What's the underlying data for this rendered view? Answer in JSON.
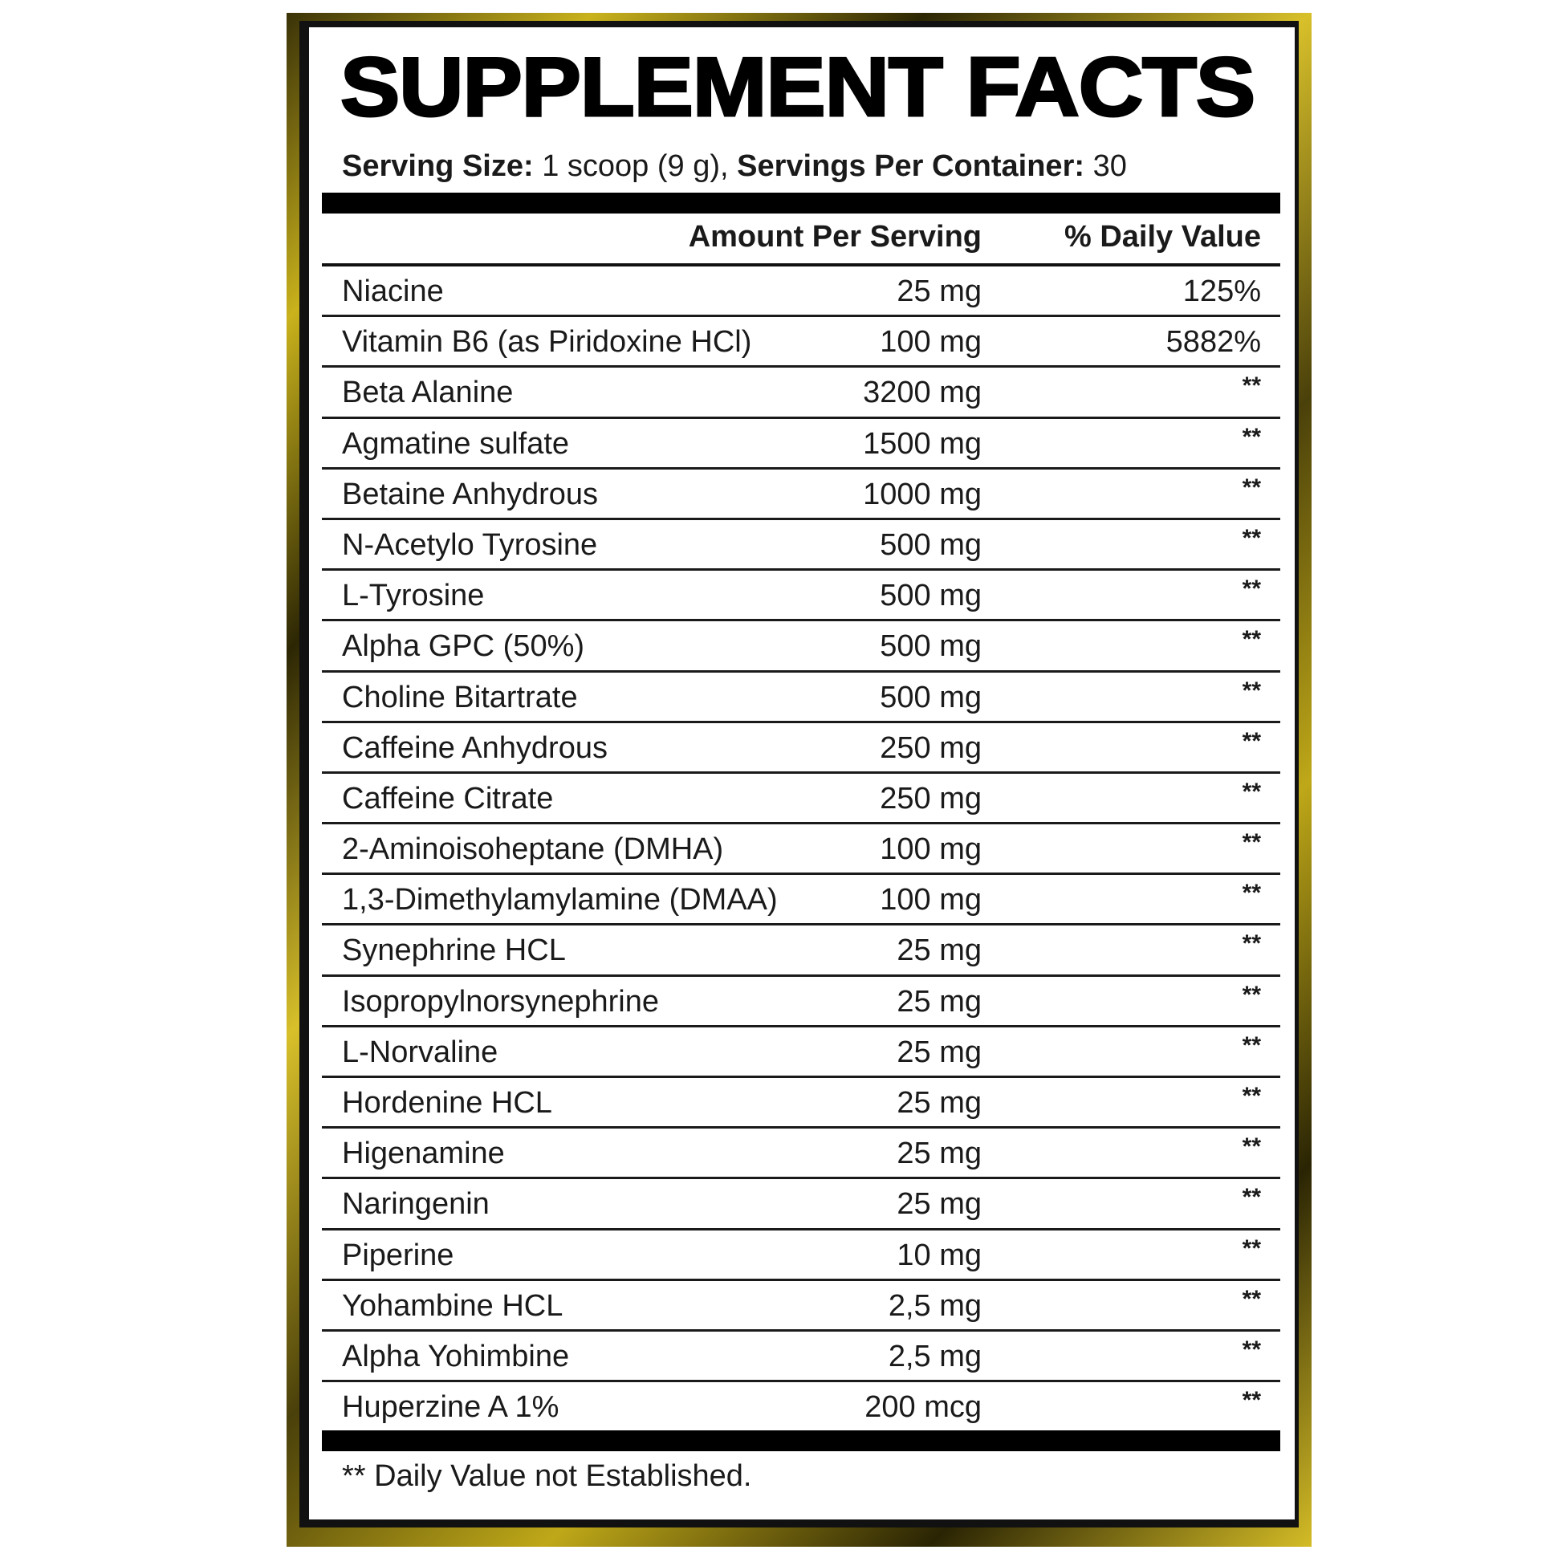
{
  "title": "SUPPLEMENT FACTS",
  "serving": {
    "size_label": "Serving Size:",
    "size_value": "1 scoop (9 g),",
    "per_container_label": "Servings Per Container:",
    "per_container_value": "30"
  },
  "headers": {
    "amount": "Amount Per Serving",
    "daily_value": "% Daily Value"
  },
  "rows": [
    {
      "name": "Niacine",
      "amount": "25 mg",
      "dv": "125%"
    },
    {
      "name": "Vitamin B6 (as Piridoxine HCl)",
      "amount": "100 mg",
      "dv": "5882%"
    },
    {
      "name": "Beta Alanine",
      "amount": "3200 mg",
      "dv": "**"
    },
    {
      "name": "Agmatine sulfate",
      "amount": "1500 mg",
      "dv": "**"
    },
    {
      "name": "Betaine Anhydrous",
      "amount": "1000 mg",
      "dv": "**"
    },
    {
      "name": "N-Acetylo Tyrosine",
      "amount": "500 mg",
      "dv": "**"
    },
    {
      "name": "L-Tyrosine",
      "amount": "500 mg",
      "dv": "**"
    },
    {
      "name": "Alpha GPC (50%)",
      "amount": "500 mg",
      "dv": "**"
    },
    {
      "name": "Choline Bitartrate",
      "amount": "500 mg",
      "dv": "**"
    },
    {
      "name": "Caffeine Anhydrous",
      "amount": "250 mg",
      "dv": "**"
    },
    {
      "name": "Caffeine Citrate",
      "amount": "250 mg",
      "dv": "**"
    },
    {
      "name": "2-Aminoisoheptane (DMHA)",
      "amount": "100 mg",
      "dv": "**"
    },
    {
      "name": "1,3-Dimethylamylamine (DMAA)",
      "amount": "100 mg",
      "dv": "**"
    },
    {
      "name": "Synephrine HCL",
      "amount": "25 mg",
      "dv": "**"
    },
    {
      "name": "Isopropylnorsynephrine",
      "amount": "25 mg",
      "dv": "**"
    },
    {
      "name": "L-Norvaline",
      "amount": "25 mg",
      "dv": "**"
    },
    {
      "name": "Hordenine HCL",
      "amount": "25 mg",
      "dv": "**"
    },
    {
      "name": "Higenamine",
      "amount": "25 mg",
      "dv": "**"
    },
    {
      "name": "Naringenin",
      "amount": "25 mg",
      "dv": "**"
    },
    {
      "name": "Piperine",
      "amount": "10 mg",
      "dv": "**"
    },
    {
      "name": "Yohambine HCL",
      "amount": "2,5 mg",
      "dv": "**"
    },
    {
      "name": "Alpha Yohimbine",
      "amount": "2,5 mg",
      "dv": "**"
    },
    {
      "name": "Huperzine A 1%",
      "amount": "200 mcg",
      "dv": "**"
    }
  ],
  "footnote": "** Daily Value not Established.",
  "colors": {
    "frame_gold": "#c9b21c",
    "ink": "#000000",
    "panel": "#ffffff"
  }
}
